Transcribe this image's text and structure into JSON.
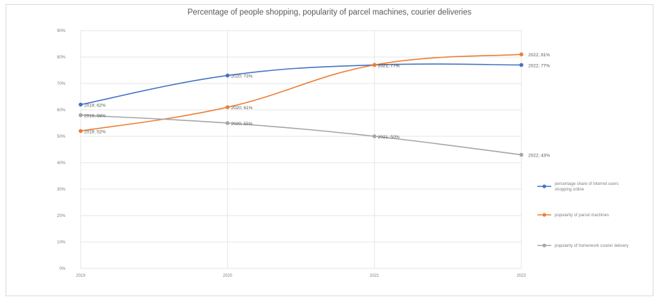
{
  "chart_data": {
    "type": "line",
    "title": "Percentage of people shopping, popularity of parcel machines, courier deliveries",
    "categories": [
      "2019",
      "2020",
      "2021",
      "2022"
    ],
    "ylim": [
      0,
      90
    ],
    "y_ticks": [
      "0%",
      "10%",
      "20%",
      "30%",
      "40%",
      "50%",
      "60%",
      "70%",
      "80%",
      "90%"
    ],
    "grid": true,
    "legend_position": "right",
    "series": [
      {
        "name": "percentage share of Internet users shopping online",
        "color": "#4472c4",
        "values": [
          62,
          73,
          77,
          77
        ],
        "labels": [
          "2019; 62%",
          "2020; 73%",
          "2021; 77%",
          "2022; 77%"
        ]
      },
      {
        "name": "popularity of parcel machines",
        "color": "#ed7d31",
        "values": [
          52,
          61,
          77,
          81
        ],
        "labels": [
          "2019; 52%",
          "2020; 61%",
          "2021; 77%",
          "2022; 81%"
        ]
      },
      {
        "name": "popularity of home/work courier delivery",
        "color": "#a5a5a5",
        "values": [
          58,
          55,
          50,
          43
        ],
        "labels": [
          "2019; 58%",
          "2020; 55%",
          "2021; 50%",
          "2022; 43%"
        ]
      }
    ]
  }
}
